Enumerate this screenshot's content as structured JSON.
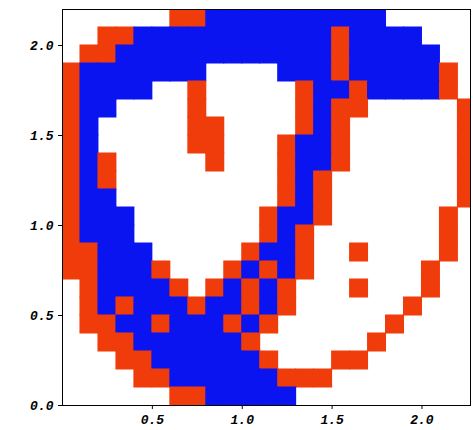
{
  "chart_data": {
    "type": "heatmap",
    "xlim": [
      0,
      2.27
    ],
    "ylim": [
      0,
      2.2
    ],
    "xticks": [
      0.5,
      {
        "value": 1,
        "label": "1.0"
      },
      1.5,
      {
        "value": 2,
        "label": "2.0"
      }
    ],
    "yticks": [
      {
        "value": 0,
        "label": "0.0"
      },
      0.5,
      {
        "value": 1,
        "label": "1.0"
      },
      1.5,
      {
        "value": 2,
        "label": "2.0"
      }
    ],
    "colors": [
      "#0a14f0",
      "#f03c0a"
    ],
    "x": [
      0.05,
      0.15,
      0.25,
      0.35,
      0.45,
      0.55,
      0.65,
      0.75,
      0.85,
      0.95,
      1.05,
      1.15,
      1.25,
      1.35,
      1.45,
      1.55,
      1.65,
      1.75,
      1.85,
      1.95,
      2.05,
      2.15,
      2.25
    ],
    "y": [
      2.15,
      2.05,
      1.95,
      1.85,
      1.75,
      1.65,
      1.55,
      1.45,
      1.35,
      1.25,
      1.15,
      1.05,
      0.95,
      0.85,
      0.75,
      0.65,
      0.55,
      0.45,
      0.35,
      0.25,
      0.15,
      0.05
    ],
    "z": [
      [
        null,
        null,
        null,
        null,
        null,
        null,
        1,
        1,
        0,
        0,
        0,
        0,
        0,
        0,
        0,
        0,
        0,
        0,
        null,
        null,
        null,
        null,
        null
      ],
      [
        null,
        null,
        1,
        1,
        0,
        0,
        0,
        0,
        0,
        0,
        0,
        0,
        0,
        0,
        0,
        1,
        0,
        0,
        0,
        0,
        null,
        null,
        null
      ],
      [
        null,
        1,
        1,
        0,
        0,
        0,
        0,
        0,
        0,
        0,
        0,
        0,
        0,
        0,
        0,
        1,
        0,
        0,
        0,
        0,
        0,
        null,
        null
      ],
      [
        1,
        0,
        0,
        0,
        0,
        0,
        0,
        0,
        null,
        null,
        null,
        null,
        0,
        0,
        0,
        1,
        0,
        0,
        0,
        0,
        0,
        1,
        null
      ],
      [
        1,
        0,
        0,
        0,
        0,
        null,
        null,
        1,
        null,
        null,
        null,
        null,
        null,
        1,
        0,
        0,
        1,
        0,
        0,
        0,
        0,
        1,
        null
      ],
      [
        1,
        0,
        0,
        null,
        null,
        null,
        null,
        1,
        null,
        null,
        null,
        null,
        null,
        1,
        0,
        1,
        1,
        null,
        null,
        null,
        null,
        null,
        1
      ],
      [
        1,
        0,
        null,
        null,
        null,
        null,
        null,
        1,
        1,
        null,
        null,
        null,
        null,
        1,
        0,
        1,
        null,
        null,
        null,
        null,
        null,
        null,
        1
      ],
      [
        1,
        0,
        null,
        null,
        null,
        null,
        null,
        1,
        1,
        null,
        null,
        null,
        1,
        0,
        0,
        1,
        null,
        null,
        null,
        null,
        null,
        null,
        1
      ],
      [
        1,
        0,
        1,
        null,
        null,
        null,
        null,
        null,
        1,
        null,
        null,
        null,
        1,
        0,
        0,
        1,
        null,
        null,
        null,
        null,
        null,
        null,
        1
      ],
      [
        1,
        0,
        1,
        null,
        null,
        null,
        null,
        null,
        null,
        null,
        null,
        null,
        1,
        0,
        1,
        null,
        null,
        null,
        null,
        null,
        null,
        null,
        1
      ],
      [
        1,
        0,
        0,
        null,
        null,
        null,
        null,
        null,
        null,
        null,
        null,
        null,
        1,
        0,
        1,
        null,
        null,
        null,
        null,
        null,
        null,
        null,
        1
      ],
      [
        1,
        0,
        0,
        0,
        null,
        null,
        null,
        null,
        null,
        null,
        null,
        1,
        0,
        0,
        1,
        null,
        null,
        null,
        null,
        null,
        null,
        1,
        null
      ],
      [
        1,
        0,
        0,
        0,
        null,
        null,
        null,
        null,
        null,
        null,
        null,
        1,
        0,
        1,
        null,
        null,
        null,
        null,
        null,
        null,
        null,
        1,
        null
      ],
      [
        1,
        1,
        0,
        0,
        0,
        null,
        null,
        null,
        null,
        null,
        1,
        0,
        0,
        1,
        null,
        null,
        1,
        null,
        null,
        null,
        null,
        1,
        null
      ],
      [
        1,
        1,
        0,
        0,
        0,
        1,
        null,
        null,
        null,
        1,
        0,
        1,
        0,
        1,
        null,
        null,
        null,
        null,
        null,
        null,
        1,
        null,
        null
      ],
      [
        null,
        1,
        0,
        0,
        0,
        0,
        1,
        null,
        1,
        0,
        1,
        0,
        1,
        null,
        null,
        null,
        1,
        null,
        null,
        null,
        1,
        null,
        null
      ],
      [
        null,
        1,
        0,
        1,
        0,
        0,
        0,
        1,
        0,
        0,
        1,
        0,
        1,
        null,
        null,
        null,
        null,
        null,
        null,
        1,
        null,
        null,
        null
      ],
      [
        null,
        1,
        1,
        0,
        0,
        1,
        0,
        0,
        0,
        1,
        0,
        1,
        null,
        null,
        null,
        null,
        null,
        null,
        1,
        null,
        null,
        null,
        null
      ],
      [
        null,
        null,
        1,
        1,
        0,
        0,
        0,
        0,
        0,
        0,
        1,
        null,
        null,
        null,
        null,
        null,
        null,
        1,
        null,
        null,
        null,
        null,
        null
      ],
      [
        null,
        null,
        null,
        1,
        1,
        0,
        0,
        0,
        0,
        0,
        0,
        1,
        null,
        null,
        null,
        1,
        1,
        null,
        null,
        null,
        null,
        null,
        null
      ],
      [
        null,
        null,
        null,
        null,
        1,
        1,
        0,
        0,
        0,
        0,
        0,
        0,
        1,
        1,
        1,
        null,
        null,
        null,
        null,
        null,
        null,
        null,
        null
      ],
      [
        null,
        null,
        null,
        null,
        null,
        null,
        1,
        1,
        0,
        0,
        0,
        0,
        0,
        null,
        null,
        null,
        null,
        null,
        null,
        null,
        null,
        null,
        null
      ]
    ]
  }
}
